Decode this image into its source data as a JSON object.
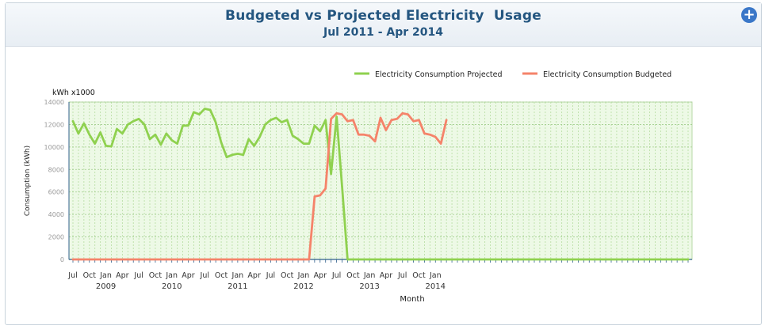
{
  "header": {
    "title": "Budgeted vs Projected Electricity  Usage",
    "subtitle": "Jul 2011 - Apr 2014",
    "expand_icon": "plus-circle-icon"
  },
  "chart_data": {
    "type": "line",
    "unit_label": "kWh x1000",
    "ylabel": "Consumption (kWh)",
    "xlabel": "Month",
    "ylim": [
      0,
      14000
    ],
    "yticks": [
      0,
      2000,
      4000,
      6000,
      8000,
      10000,
      12000,
      14000
    ],
    "grid": true,
    "legend_position": "top-right",
    "month_ticks": [
      "Jul",
      "Oct",
      "Jan",
      "Apr",
      "Jul",
      "Oct",
      "Jan",
      "Apr",
      "Jul",
      "Oct",
      "Jan",
      "Apr",
      "Jul",
      "Oct",
      "Jan",
      "Apr",
      "Jul",
      "Oct",
      "Jan",
      "Apr",
      "Jul",
      "Oct",
      "Jan"
    ],
    "year_labels": [
      "2009",
      "2010",
      "2011",
      "2012",
      "2013",
      "2014"
    ],
    "series": [
      {
        "name": "Electricity Consumption Projected",
        "color": "#8fd14f",
        "values": [
          12300,
          11200,
          12100,
          11100,
          10300,
          11300,
          10100,
          10050,
          11600,
          11200,
          12000,
          12300,
          12500,
          12000,
          10700,
          11100,
          10200,
          11200,
          10600,
          10300,
          11900,
          11900,
          13100,
          12900,
          13400,
          13300,
          12200,
          10400,
          9100,
          9300,
          9400,
          9300,
          10700,
          10100,
          10900,
          12000,
          12400,
          12600,
          12200,
          12400,
          11000,
          10700,
          10300,
          10300,
          11900,
          11400,
          12400,
          7600,
          12700,
          6500,
          0,
          0,
          0,
          0,
          0,
          0,
          0,
          0,
          0,
          0,
          0,
          0,
          0,
          0,
          0,
          0,
          0,
          0,
          0,
          0,
          0,
          0,
          0,
          0,
          0,
          0,
          0,
          0,
          0,
          0,
          0,
          0,
          0,
          0,
          0,
          0,
          0,
          0,
          0,
          0,
          0,
          0,
          0,
          0,
          0,
          0,
          0,
          0,
          0,
          0,
          0,
          0,
          0,
          0,
          0,
          0,
          0,
          0,
          0,
          0,
          0,
          0,
          0
        ]
      },
      {
        "name": "Electricity Consumption Budgeted",
        "color": "#f5836a",
        "values": [
          0,
          0,
          0,
          0,
          0,
          0,
          0,
          0,
          0,
          0,
          0,
          0,
          0,
          0,
          0,
          0,
          0,
          0,
          0,
          0,
          0,
          0,
          0,
          0,
          0,
          0,
          0,
          0,
          0,
          0,
          0,
          0,
          0,
          0,
          0,
          0,
          0,
          0,
          0,
          0,
          0,
          0,
          0,
          0,
          5600,
          5700,
          6300,
          12500,
          13000,
          12900,
          12300,
          12400,
          11100,
          11100,
          11000,
          10500,
          12600,
          11500,
          12400,
          12500,
          13000,
          12900,
          12300,
          12400,
          11200,
          11100,
          10900,
          10300,
          12400
        ]
      }
    ]
  }
}
